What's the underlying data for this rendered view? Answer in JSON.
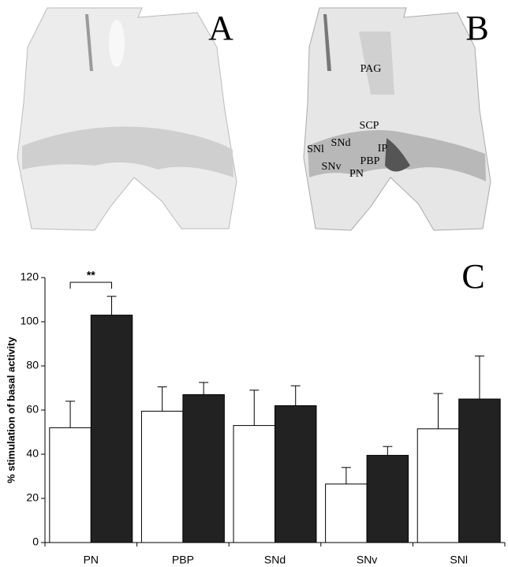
{
  "panels": {
    "a": {
      "label": "A"
    },
    "b": {
      "label": "B",
      "regions": [
        "PAG",
        "SCP",
        "SNd",
        "SNl",
        "IP",
        "PBP",
        "SNv",
        "PN"
      ]
    }
  },
  "chart_data": {
    "type": "bar",
    "panel_label": "C",
    "ylabel": "% stimulation of basal activity",
    "categories": [
      "PN",
      "PBP",
      "SNd",
      "SNv",
      "SNl"
    ],
    "series": [
      {
        "color": "#ffffff",
        "values": [
          52,
          59.5,
          53,
          26.5,
          51.5
        ],
        "errors": [
          12,
          11,
          16,
          7.5,
          16
        ]
      },
      {
        "color": "#222222",
        "values": [
          103,
          67,
          62,
          39.5,
          65
        ],
        "errors": [
          8.5,
          5.5,
          9,
          4,
          19.5
        ]
      }
    ],
    "annotation": "**",
    "ylim": [
      0,
      120
    ],
    "yticks": [
      0,
      20,
      40,
      60,
      80,
      100,
      120
    ]
  }
}
